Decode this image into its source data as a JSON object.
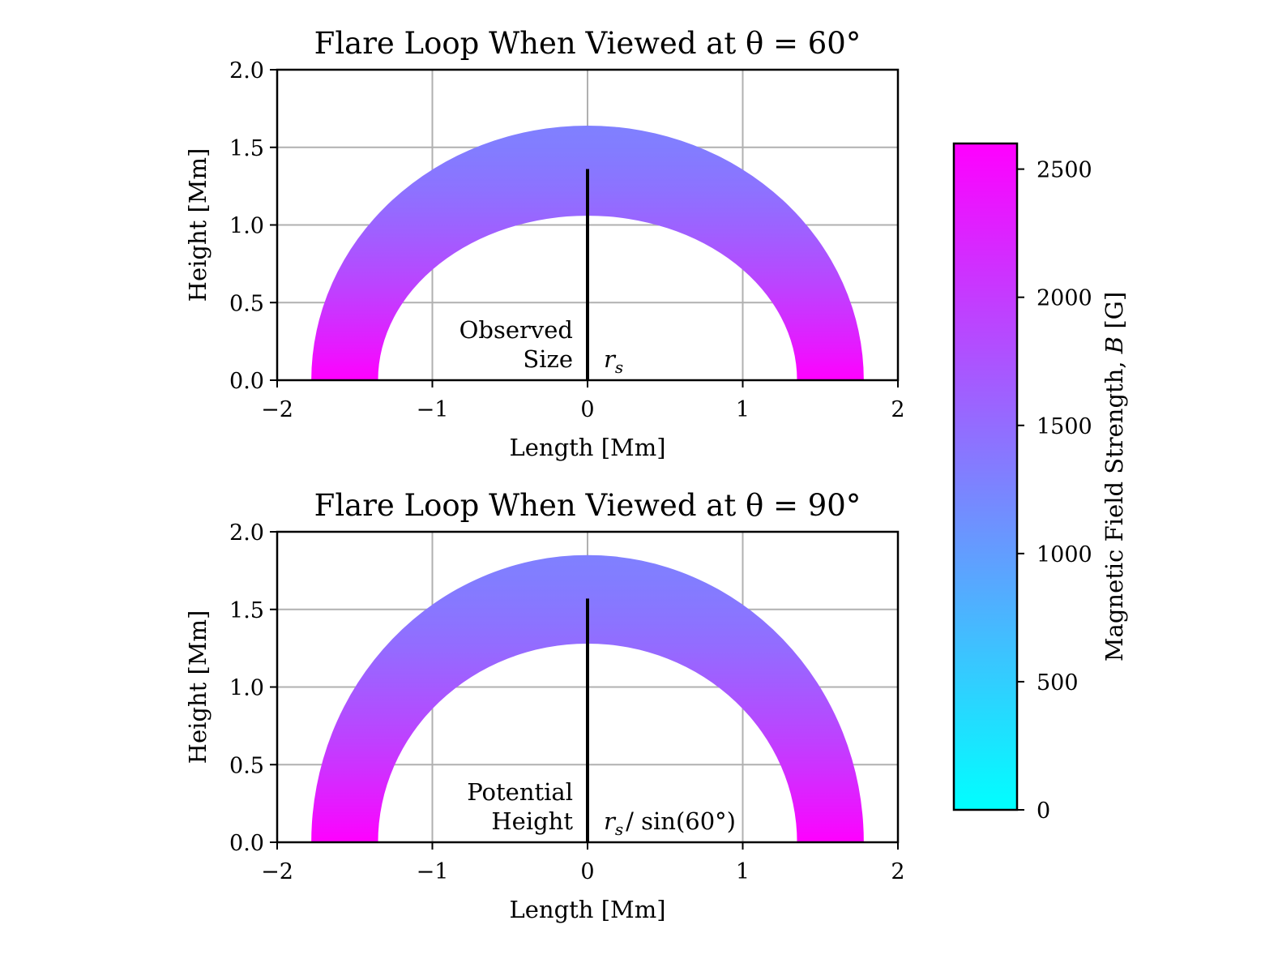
{
  "colors": {
    "cmap_low": "#00ffff",
    "cmap_high": "#ff00ff",
    "grid": "#b0b0b0",
    "line": "#000000"
  },
  "chart_data": [
    {
      "type": "area",
      "title": "Flare Loop When Viewed at θ = 60°",
      "xlabel": "Length [Mm]",
      "ylabel": "Height [Mm]",
      "xlim": [
        -2,
        2
      ],
      "ylim": [
        0,
        2
      ],
      "x_ticks": [
        -2,
        -1,
        0,
        1,
        2
      ],
      "y_ticks": [
        0.0,
        0.5,
        1.0,
        1.5,
        2.0
      ],
      "x_tick_labels": [
        "−2",
        "−1",
        "0",
        "1",
        "2"
      ],
      "y_tick_labels": [
        "0.0",
        "0.5",
        "1.0",
        "1.5",
        "2.0"
      ],
      "grid": true,
      "loop": {
        "outer_half_width": 1.78,
        "inner_half_width": 1.35,
        "outer_height": 1.64,
        "inner_height": 1.06,
        "B_apex": 1300,
        "B_footpoint": 2600
      },
      "marker_line": {
        "x": 0,
        "y0": 0,
        "y1": 1.36
      },
      "annotation_left": [
        "Observed",
        "Size"
      ],
      "annotation_right": {
        "base": "r",
        "sub": "s",
        "suffix": ""
      }
    },
    {
      "type": "area",
      "title": "Flare Loop When Viewed at θ = 90°",
      "xlabel": "Length [Mm]",
      "ylabel": "Height [Mm]",
      "xlim": [
        -2,
        2
      ],
      "ylim": [
        0,
        2
      ],
      "x_ticks": [
        -2,
        -1,
        0,
        1,
        2
      ],
      "y_ticks": [
        0.0,
        0.5,
        1.0,
        1.5,
        2.0
      ],
      "x_tick_labels": [
        "−2",
        "−1",
        "0",
        "1",
        "2"
      ],
      "y_tick_labels": [
        "0.0",
        "0.5",
        "1.0",
        "1.5",
        "2.0"
      ],
      "grid": true,
      "loop": {
        "outer_half_width": 1.78,
        "inner_half_width": 1.35,
        "outer_height": 1.85,
        "inner_height": 1.28,
        "B_apex": 1300,
        "B_footpoint": 2600
      },
      "marker_line": {
        "x": 0,
        "y0": 0,
        "y1": 1.57
      },
      "annotation_left": [
        "Potential",
        "Height"
      ],
      "annotation_right": {
        "base": "r",
        "sub": "s",
        "suffix": "/ sin(60°)"
      }
    }
  ],
  "colorbar": {
    "label": "Magnetic Field Strength, B [G]",
    "vmin": 0,
    "vmax": 2600,
    "ticks": [
      0,
      500,
      1000,
      1500,
      2000,
      2500
    ]
  }
}
